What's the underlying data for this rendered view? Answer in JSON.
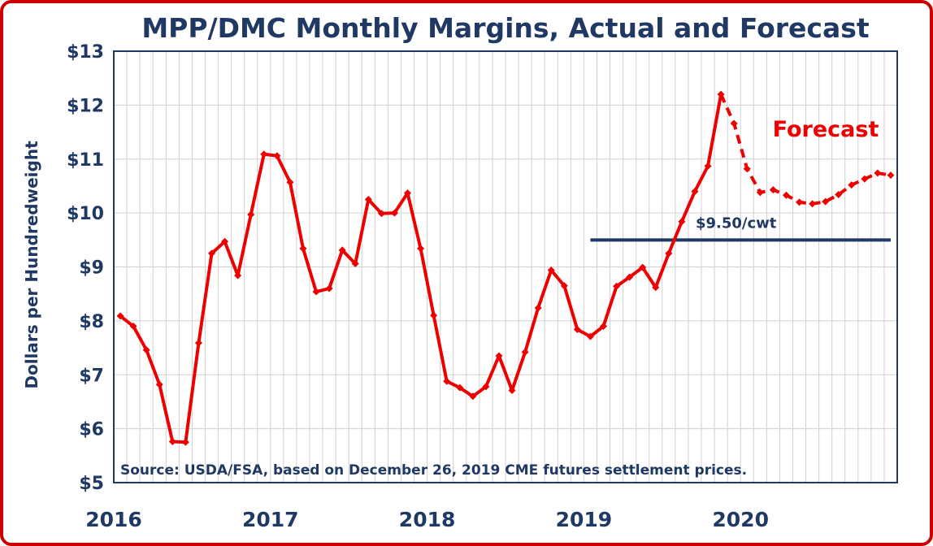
{
  "chart_data": {
    "type": "line",
    "title": "MPP/DMC Monthly Margins, Actual and Forecast",
    "ylabel": "Dollars per Hundredweight",
    "xlabel": "",
    "ylim": [
      5,
      13
    ],
    "y_ticks": [
      "$5",
      "$6",
      "$7",
      "$8",
      "$9",
      "$10",
      "$11",
      "$12",
      "$13"
    ],
    "x_ticks": [
      "2016",
      "2017",
      "2018",
      "2019",
      "2020"
    ],
    "grid": true,
    "series": [
      {
        "style": "solid",
        "color": "#ee0000",
        "x": [
          "2016-01",
          "2016-02",
          "2016-03",
          "2016-04",
          "2016-05",
          "2016-06",
          "2016-07",
          "2016-08",
          "2016-09",
          "2016-10",
          "2016-11",
          "2016-12",
          "2017-01",
          "2017-02",
          "2017-03",
          "2017-04",
          "2017-05",
          "2017-06",
          "2017-07",
          "2017-08",
          "2017-09",
          "2017-10",
          "2017-11",
          "2017-12",
          "2018-01",
          "2018-02",
          "2018-03",
          "2018-04",
          "2018-05",
          "2018-06",
          "2018-07",
          "2018-08",
          "2018-09",
          "2018-10",
          "2018-11",
          "2018-12",
          "2019-01",
          "2019-02",
          "2019-03",
          "2019-04",
          "2019-05",
          "2019-06",
          "2019-07",
          "2019-08",
          "2019-09",
          "2019-10",
          "2019-11"
        ],
        "values": [
          8.09,
          7.9,
          7.46,
          6.82,
          5.76,
          5.75,
          7.59,
          9.25,
          9.47,
          8.84,
          9.97,
          11.09,
          11.06,
          10.57,
          9.34,
          8.54,
          8.6,
          9.31,
          9.06,
          10.25,
          9.99,
          10.0,
          10.37,
          9.34,
          8.1,
          6.88,
          6.76,
          6.6,
          6.78,
          7.35,
          6.71,
          7.42,
          8.24,
          8.94,
          8.65,
          7.84,
          7.71,
          7.9,
          8.64,
          8.81,
          8.99,
          8.62,
          9.25,
          9.84,
          10.4,
          10.87,
          12.2
        ]
      },
      {
        "style": "dashed",
        "color": "#ee0000",
        "x": [
          "2019-11",
          "2019-12",
          "2020-01",
          "2020-02",
          "2020-03",
          "2020-04",
          "2020-05",
          "2020-06",
          "2020-07",
          "2020-08",
          "2020-09",
          "2020-10",
          "2020-11",
          "2020-12"
        ],
        "values": [
          12.2,
          11.66,
          10.82,
          10.38,
          10.43,
          10.33,
          10.2,
          10.17,
          10.21,
          10.34,
          10.52,
          10.63,
          10.74,
          10.7
        ]
      }
    ],
    "annotations": {
      "forecast_label": "Forecast",
      "threshold": {
        "value": 9.5,
        "label": "$9.50/cwt",
        "from": "2019-01",
        "to": "2020-12",
        "color": "#1f3864"
      },
      "source": "Source:  USDA/FSA, based on December 26, 2019 CME futures settlement prices."
    },
    "colors": {
      "title": "#1f3864",
      "line": "#ee0000",
      "threshold": "#1f3864",
      "frame": "#cc0000",
      "grid": "#d0d0d0"
    }
  }
}
